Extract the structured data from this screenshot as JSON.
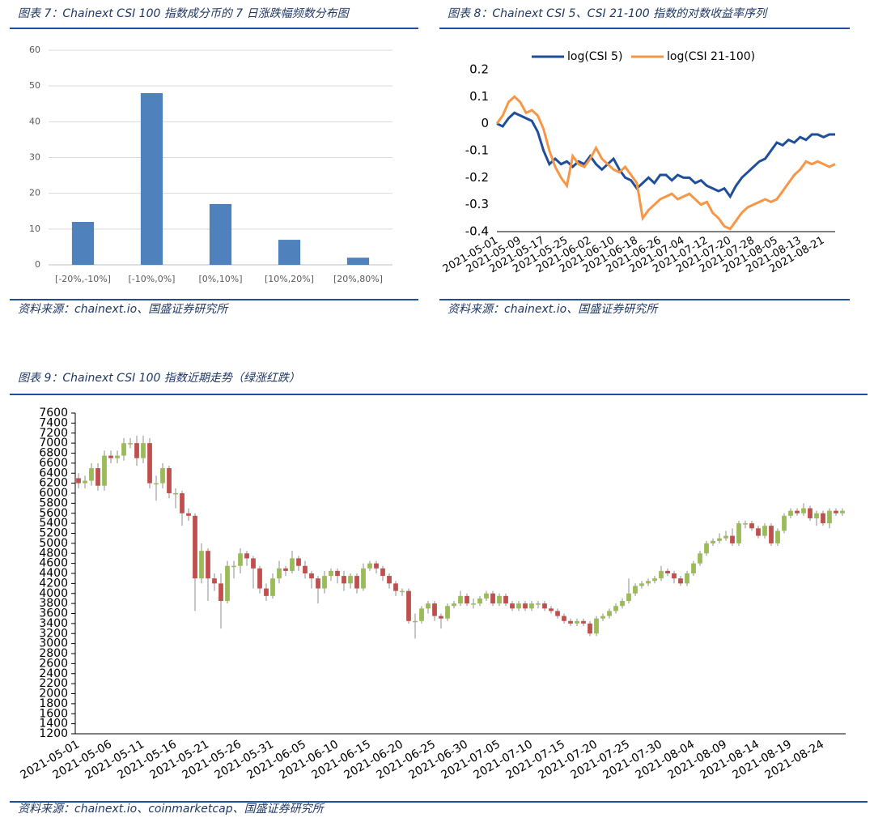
{
  "chart_data": [
    {
      "type": "bar",
      "title": "图表 7：Chainext CSI 100 指数成分币的 7 日涨跌幅频数分布图",
      "source": "资料来源：chainext.io、国盛证券研究所",
      "categories": [
        "[-20%,-10%]",
        "[-10%,0%]",
        "[0%,10%]",
        "[10%,20%]",
        "[20%,80%]"
      ],
      "values": [
        12,
        48,
        17,
        7,
        2
      ],
      "color": "#4f81bd",
      "ylim": [
        0,
        60
      ],
      "yticks": [
        0,
        10,
        20,
        30,
        40,
        50,
        60
      ],
      "grid": true
    },
    {
      "type": "line",
      "title": "图表 8：Chainext CSI 5、CSI 21-100 指数的对数收益率序列",
      "source": "资料来源：chainext.io、国盛证券研究所",
      "legend": "top",
      "categories": [
        "2021-05-01",
        null,
        null,
        null,
        "2021-05-09",
        null,
        null,
        null,
        "2021-05-17",
        null,
        null,
        null,
        "2021-05-25",
        null,
        null,
        null,
        "2021-06-02",
        null,
        null,
        null,
        "2021-06-10",
        null,
        null,
        null,
        "2021-06-18",
        null,
        null,
        null,
        "2021-06-26",
        null,
        null,
        null,
        "2021-07-04",
        null,
        null,
        null,
        "2021-07-12",
        null,
        null,
        null,
        "2021-07-20",
        null,
        null,
        null,
        "2021-07-28",
        null,
        null,
        null,
        "2021-08-05",
        null,
        null,
        null,
        "2021-08-13",
        null,
        null,
        null,
        "2021-08-21",
        null,
        null
      ],
      "series": [
        {
          "name": "log(CSI 5)",
          "color": "#1f4e9a",
          "values": [
            0,
            -0.01,
            0.02,
            0.04,
            0.03,
            0.02,
            0.01,
            -0.03,
            -0.1,
            -0.15,
            -0.13,
            -0.15,
            -0.14,
            -0.16,
            -0.14,
            -0.15,
            -0.12,
            -0.15,
            -0.17,
            -0.15,
            -0.13,
            -0.17,
            -0.2,
            -0.21,
            -0.24,
            -0.22,
            -0.2,
            -0.22,
            -0.19,
            -0.19,
            -0.21,
            -0.19,
            -0.2,
            -0.2,
            -0.22,
            -0.21,
            -0.23,
            -0.24,
            -0.25,
            -0.24,
            -0.27,
            -0.23,
            -0.2,
            -0.18,
            -0.16,
            -0.14,
            -0.13,
            -0.1,
            -0.07,
            -0.08,
            -0.06,
            -0.07,
            -0.05,
            -0.06,
            -0.04,
            -0.04,
            -0.05,
            -0.04,
            -0.04
          ]
        },
        {
          "name": "log(CSI 21-100)",
          "color": "#f79646",
          "values": [
            0,
            0.03,
            0.08,
            0.1,
            0.08,
            0.04,
            0.05,
            0.03,
            -0.02,
            -0.1,
            -0.16,
            -0.2,
            -0.23,
            -0.12,
            -0.15,
            -0.16,
            -0.13,
            -0.09,
            -0.13,
            -0.15,
            -0.17,
            -0.18,
            -0.16,
            -0.19,
            -0.22,
            -0.35,
            -0.32,
            -0.3,
            -0.28,
            -0.27,
            -0.26,
            -0.28,
            -0.27,
            -0.26,
            -0.28,
            -0.3,
            -0.29,
            -0.33,
            -0.35,
            -0.38,
            -0.39,
            -0.36,
            -0.33,
            -0.31,
            -0.3,
            -0.29,
            -0.28,
            -0.29,
            -0.28,
            -0.25,
            -0.22,
            -0.19,
            -0.17,
            -0.14,
            -0.15,
            -0.14,
            -0.15,
            -0.16,
            -0.15
          ]
        }
      ],
      "ylim": [
        -0.4,
        0.2
      ],
      "yticks": [
        0.2,
        0.1,
        0,
        -0.1,
        -0.2,
        -0.3,
        -0.4
      ]
    },
    {
      "type": "candlestick",
      "title": "图表 9：Chainext CSI 100 指数近期走势（绿涨红跌）",
      "source": "资料来源：chainext.io、coinmarketcap、国盛证券研究所",
      "up_color": "#9bbb59",
      "down_color": "#c0504d",
      "categories": [
        "2021-05-01",
        null,
        null,
        null,
        null,
        "2021-05-06",
        null,
        null,
        null,
        null,
        "2021-05-11",
        null,
        null,
        null,
        null,
        "2021-05-16",
        null,
        null,
        null,
        null,
        "2021-05-21",
        null,
        null,
        null,
        null,
        "2021-05-26",
        null,
        null,
        null,
        null,
        "2021-05-31",
        null,
        null,
        null,
        null,
        "2021-06-05",
        null,
        null,
        null,
        null,
        "2021-06-10",
        null,
        null,
        null,
        null,
        "2021-06-15",
        null,
        null,
        null,
        null,
        "2021-06-20",
        null,
        null,
        null,
        null,
        "2021-06-25",
        null,
        null,
        null,
        null,
        "2021-06-30",
        null,
        null,
        null,
        null,
        "2021-07-05",
        null,
        null,
        null,
        null,
        "2021-07-10",
        null,
        null,
        null,
        null,
        "2021-07-15",
        null,
        null,
        null,
        null,
        "2021-07-20",
        null,
        null,
        null,
        null,
        "2021-07-25",
        null,
        null,
        null,
        null,
        "2021-07-30",
        null,
        null,
        null,
        null,
        "2021-08-04",
        null,
        null,
        null,
        null,
        "2021-08-09",
        null,
        null,
        null,
        null,
        "2021-08-14",
        null,
        null,
        null,
        null,
        "2021-08-19",
        null,
        null,
        null,
        null,
        "2021-08-24",
        null,
        null,
        null
      ],
      "open": [
        6300,
        6200,
        6250,
        6500,
        6150,
        6750,
        6700,
        6750,
        7000,
        7000,
        6700,
        7000,
        6200,
        6200,
        6500,
        6000,
        6000,
        5600,
        5550,
        4300,
        4850,
        4300,
        4200,
        3850,
        4550,
        4550,
        4800,
        4700,
        4500,
        4100,
        3950,
        4300,
        4500,
        4450,
        4700,
        4550,
        4400,
        4300,
        4100,
        4350,
        4450,
        4350,
        4200,
        4350,
        4100,
        4500,
        4600,
        4500,
        4350,
        4200,
        4050,
        4050,
        3450,
        3450,
        3700,
        3800,
        3550,
        3500,
        3750,
        3800,
        3950,
        3800,
        3800,
        3900,
        4000,
        3800,
        3950,
        3800,
        3700,
        3800,
        3700,
        3800,
        3800,
        3700,
        3650,
        3550,
        3450,
        3400,
        3450,
        3400,
        3200,
        3500,
        3550,
        3650,
        3750,
        3850,
        4000,
        4150,
        4200,
        4250,
        4300,
        4450,
        4400,
        4300,
        4200,
        4400,
        4600,
        4800,
        5000,
        5050,
        5100,
        5150,
        5000,
        5400,
        5400,
        5300,
        5150,
        5350,
        5000,
        5250,
        5550,
        5650,
        5600,
        5700,
        5500,
        5600,
        5400,
        5650,
        5600
      ],
      "high": [
        6400,
        6350,
        6600,
        6600,
        6850,
        6850,
        6850,
        7100,
        7100,
        7150,
        7150,
        7100,
        6350,
        6600,
        6550,
        6100,
        6050,
        5700,
        5600,
        5000,
        4900,
        4400,
        4400,
        4650,
        4650,
        4900,
        4850,
        4750,
        4550,
        4200,
        4400,
        4650,
        4550,
        4850,
        4750,
        4650,
        4450,
        4350,
        4450,
        4500,
        4500,
        4450,
        4400,
        4400,
        4600,
        4650,
        4650,
        4550,
        4400,
        4250,
        4100,
        4100,
        3600,
        3750,
        3850,
        3850,
        3600,
        3800,
        3850,
        4050,
        4000,
        3900,
        3950,
        4050,
        4050,
        4000,
        4000,
        3850,
        3850,
        3850,
        3850,
        3850,
        3850,
        3750,
        3700,
        3600,
        3500,
        3500,
        3500,
        3450,
        3550,
        3600,
        3700,
        3800,
        3900,
        4300,
        4200,
        4250,
        4300,
        4350,
        4550,
        4500,
        4450,
        4350,
        4450,
        4650,
        4850,
        5050,
        5100,
        5200,
        5250,
        5300,
        5450,
        5450,
        5450,
        5350,
        5400,
        5400,
        5300,
        5600,
        5700,
        5700,
        5800,
        5750,
        5650,
        5650,
        5700,
        5700,
        5700
      ],
      "low": [
        6100,
        6100,
        6150,
        6050,
        6050,
        6600,
        6600,
        6650,
        6900,
        6550,
        6600,
        6100,
        5850,
        6100,
        5900,
        5700,
        5350,
        5450,
        3650,
        4200,
        3850,
        4050,
        3300,
        3800,
        4300,
        4400,
        4550,
        4100,
        4000,
        3850,
        3900,
        4200,
        4350,
        4400,
        4450,
        4300,
        4100,
        3800,
        4000,
        4250,
        4200,
        4050,
        4100,
        4000,
        4050,
        4450,
        4400,
        4250,
        4100,
        3950,
        3950,
        3400,
        3100,
        3400,
        3600,
        3450,
        3300,
        3450,
        3700,
        3750,
        3750,
        3700,
        3750,
        3850,
        3750,
        3750,
        3750,
        3650,
        3650,
        3650,
        3650,
        3700,
        3650,
        3600,
        3500,
        3400,
        3350,
        3350,
        3350,
        3150,
        3150,
        3450,
        3500,
        3600,
        3700,
        3800,
        3950,
        4100,
        4150,
        4200,
        4250,
        4350,
        4200,
        4150,
        4150,
        4350,
        4550,
        4750,
        4950,
        5000,
        5050,
        4950,
        4950,
        5300,
        5250,
        5100,
        5100,
        4950,
        4950,
        5200,
        5500,
        5550,
        5550,
        5450,
        5350,
        5350,
        5300,
        5550,
        5550
      ],
      "close": [
        6200,
        6250,
        6500,
        6150,
        6750,
        6700,
        6750,
        7000,
        7000,
        6700,
        7000,
        6200,
        6200,
        6500,
        6000,
        6000,
        5600,
        5550,
        4300,
        4850,
        4300,
        4200,
        3850,
        4550,
        4550,
        4800,
        4700,
        4500,
        4100,
        3950,
        4300,
        4500,
        4450,
        4700,
        4550,
        4400,
        4300,
        4100,
        4350,
        4450,
        4350,
        4200,
        4350,
        4100,
        4500,
        4600,
        4500,
        4350,
        4200,
        4050,
        4050,
        3450,
        3450,
        3700,
        3800,
        3550,
        3500,
        3750,
        3800,
        3950,
        3800,
        3800,
        3900,
        4000,
        3800,
        3950,
        3800,
        3700,
        3800,
        3700,
        3800,
        3800,
        3700,
        3650,
        3550,
        3450,
        3400,
        3450,
        3400,
        3200,
        3500,
        3550,
        3650,
        3750,
        3850,
        4000,
        4150,
        4200,
        4250,
        4300,
        4450,
        4400,
        4300,
        4200,
        4400,
        4600,
        4800,
        5000,
        5050,
        5100,
        5150,
        5000,
        5400,
        5400,
        5300,
        5150,
        5350,
        5000,
        5250,
        5550,
        5650,
        5600,
        5700,
        5500,
        5600,
        5400,
        5650,
        5600,
        5650
      ],
      "ylim": [
        1200,
        7600
      ],
      "yticks": [
        1200,
        1400,
        1600,
        1800,
        2000,
        2200,
        2400,
        2600,
        2800,
        3000,
        3200,
        3400,
        3600,
        3800,
        4000,
        4200,
        4400,
        4600,
        4800,
        5000,
        5200,
        5400,
        5600,
        5800,
        6000,
        6200,
        6400,
        6600,
        6800,
        7000,
        7200,
        7400,
        7600
      ]
    }
  ]
}
